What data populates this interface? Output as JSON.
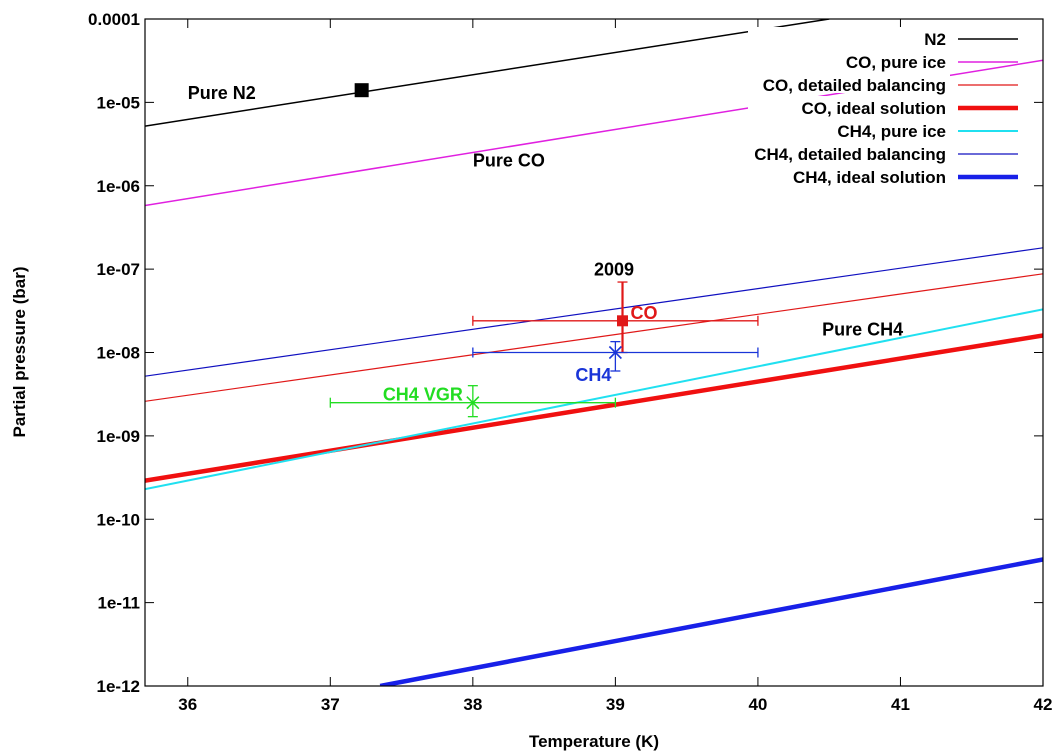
{
  "chart_data": {
    "type": "line",
    "title": "",
    "xlabel": "Temperature (K)",
    "ylabel": "Partial pressure (bar)",
    "xlim": [
      35.7,
      42
    ],
    "ylim": [
      1e-12,
      0.0001
    ],
    "yscale": "log",
    "grid": false,
    "legend_position": "top-right",
    "x_ticks": [
      36,
      37,
      38,
      39,
      40,
      41,
      42
    ],
    "x_tick_labels": [
      "36",
      "37",
      "38",
      "39",
      "40",
      "41",
      "42"
    ],
    "y_ticks": [
      1e-12,
      1e-11,
      1e-10,
      1e-09,
      1e-08,
      1e-07,
      1e-06,
      1e-05,
      0.0001
    ],
    "y_tick_labels": [
      "1e-12",
      "1e-11",
      "1e-10",
      "1e-09",
      "1e-08",
      "1e-07",
      "1e-06",
      "1e-05",
      "0.0001"
    ],
    "series": [
      {
        "name": "N2",
        "color": "#000000",
        "width": 1.5,
        "x": [
          35.7,
          40.5
        ],
        "y": [
          5.2e-06,
          0.0001
        ]
      },
      {
        "name": "CO, pure ice",
        "color": "#e020e0",
        "width": 1.5,
        "x": [
          35.7,
          42
        ],
        "y": [
          5.8e-07,
          3.2e-05
        ]
      },
      {
        "name": "CO, detailed balancing",
        "color": "#e01818",
        "width": 1.2,
        "x": [
          35.7,
          42
        ],
        "y": [
          2.6e-09,
          8.8e-08
        ]
      },
      {
        "name": "CO, ideal solution",
        "color": "#f01010",
        "width": 4.5,
        "x": [
          35.7,
          42
        ],
        "y": [
          2.9e-10,
          1.6e-08
        ]
      },
      {
        "name": "CH4, pure ice",
        "color": "#20e0f0",
        "width": 2.0,
        "x": [
          35.7,
          42
        ],
        "y": [
          2.3e-10,
          3.3e-08
        ]
      },
      {
        "name": "CH4, detailed balancing",
        "color": "#1010c0",
        "width": 1.2,
        "x": [
          35.7,
          42
        ],
        "y": [
          5.2e-09,
          1.8e-07
        ]
      },
      {
        "name": "CH4, ideal solution",
        "color": "#1820e8",
        "width": 4.5,
        "x": [
          37.35,
          42
        ],
        "y": [
          1e-12,
          3.3e-11
        ]
      }
    ],
    "measurements": [
      {
        "label": "",
        "marker": "filled-square",
        "color": "#000000",
        "x": 37.22,
        "y": 1.4e-05
      },
      {
        "label": "CO",
        "marker": "filled-square",
        "color": "#e01818",
        "x": 39.05,
        "y": 2.4e-08,
        "xerr": [
          38.0,
          40.0
        ],
        "yerr": [
          1e-08,
          7e-08
        ]
      },
      {
        "label": "CH4",
        "marker": "cross",
        "color": "#1a35d8",
        "x": 39.0,
        "y": 1e-08,
        "xerr": [
          38.0,
          40.0
        ],
        "yerr": [
          6e-09,
          1.35e-08
        ]
      },
      {
        "label": "CH4 VGR",
        "marker": "cross",
        "color": "#22dd22",
        "x": 38.0,
        "y": 2.5e-09,
        "xerr": [
          37.0,
          39.0
        ],
        "yerr": [
          1.7e-09,
          4e-09
        ]
      }
    ],
    "annotations": [
      {
        "text": "Pure N2",
        "x": 36.0,
        "y": 1.1e-05,
        "color": "#000000"
      },
      {
        "text": "Pure CO",
        "x": 38.0,
        "y": 1.7e-06,
        "color": "#000000"
      },
      {
        "text": "2009",
        "x": 38.85,
        "y": 8.4e-08,
        "color": "#000000"
      },
      {
        "text": "Pure CH4",
        "x": 40.45,
        "y": 1.6e-08,
        "color": "#000000"
      }
    ]
  }
}
